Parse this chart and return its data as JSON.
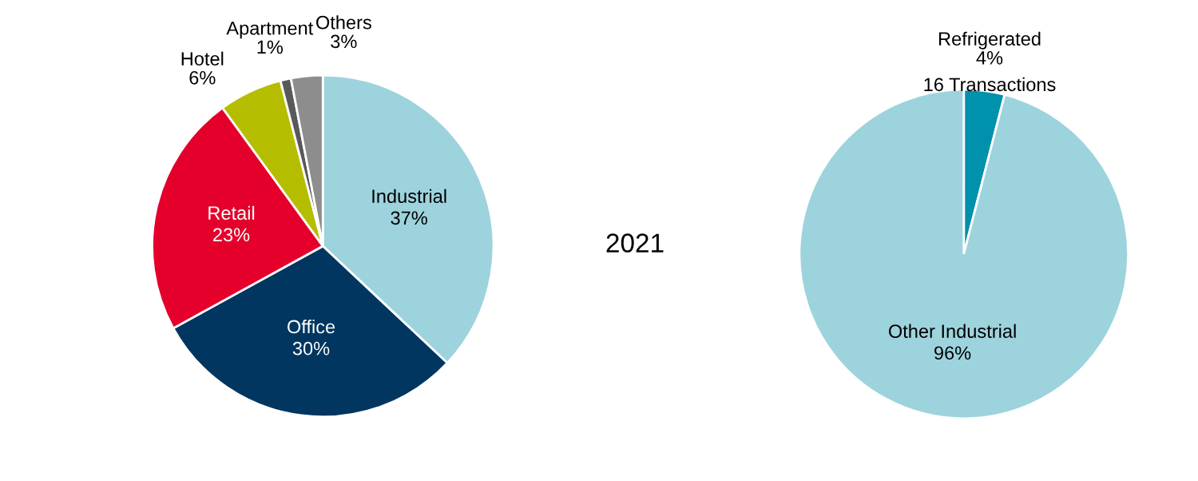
{
  "chart_data": [
    {
      "type": "pie",
      "categories": [
        "Industrial",
        "Office",
        "Retail",
        "Hotel",
        "Apartment",
        "Others"
      ],
      "values": [
        37,
        30,
        23,
        6,
        1,
        3
      ],
      "value_labels": [
        "37%",
        "30%",
        "23%",
        "6%",
        "1%",
        "3%"
      ],
      "colors": [
        "#9dd3dd",
        "#003660",
        "#e4002b",
        "#b5bd00",
        "#58595b",
        "#8d8d8d"
      ],
      "annotations": [
        "2021"
      ]
    },
    {
      "type": "pie",
      "categories": [
        "Refrigerated",
        "Other Industrial"
      ],
      "values": [
        4,
        96
      ],
      "value_labels": [
        "4%",
        "96%"
      ],
      "colors": [
        "#0091ac",
        "#9dd3dd"
      ],
      "annotations": [
        {
          "text": "16 Transactions",
          "x": "Refrigerated"
        }
      ]
    }
  ]
}
